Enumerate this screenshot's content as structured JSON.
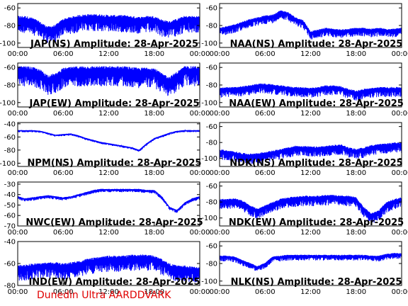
{
  "credit": "Dunedin Ultra AARDDVARK",
  "colors": {
    "trace": "#0000ff",
    "frame": "#000000",
    "credit": "#e00000"
  },
  "chart_data": [
    {
      "type": "line",
      "title": "JAP(NS) Amplitude: 28-Apr-2025",
      "xticks": [
        "00:00",
        "06:00",
        "12:00",
        "18:00",
        "00:00"
      ],
      "ylim": [
        -105,
        -55
      ],
      "yticks": [
        -100,
        -80,
        -60
      ],
      "x": [
        0,
        1,
        2,
        3,
        4,
        5,
        6,
        7,
        8,
        9,
        10,
        11,
        12,
        13,
        14,
        15,
        16,
        17,
        18,
        19,
        20,
        21,
        22,
        23,
        24
      ],
      "values": [
        -72,
        -72,
        -74,
        -79,
        -84,
        -82,
        -75,
        -73,
        -71,
        -70,
        -70,
        -70,
        -71,
        -71,
        -71,
        -72,
        -73,
        -72,
        -72,
        -76,
        -78,
        -75,
        -72,
        -72,
        -72
      ],
      "noise": 12
    },
    {
      "type": "line",
      "title": "NAA(NS) Amplitude: 28-Apr-2025",
      "xticks": [
        "00:00",
        "06:00",
        "12:00",
        "18:00",
        "00:00"
      ],
      "ylim": [
        -105,
        -55
      ],
      "yticks": [
        -100,
        -80,
        -60
      ],
      "x": [
        0,
        1,
        2,
        3,
        4,
        5,
        6,
        7,
        8,
        9,
        10,
        11,
        12,
        13,
        14,
        15,
        16,
        17,
        18,
        19,
        20,
        21,
        22,
        23,
        24
      ],
      "values": [
        -84,
        -82,
        -80,
        -77,
        -74,
        -72,
        -70,
        -69,
        -64,
        -66,
        -72,
        -75,
        -88,
        -86,
        -84,
        -85,
        -86,
        -85,
        -84,
        -84,
        -85,
        -84,
        -85,
        -85,
        -84
      ],
      "noise": 6
    },
    {
      "type": "line",
      "title": "JAP(EW) Amplitude: 28-Apr-2025",
      "xticks": [
        "00:00",
        "06:00",
        "12:00",
        "18:00",
        "00:00"
      ],
      "ylim": [
        -105,
        -55
      ],
      "yticks": [
        -100,
        -80,
        -60
      ],
      "x": [
        0,
        1,
        2,
        3,
        4,
        5,
        6,
        7,
        8,
        9,
        10,
        11,
        12,
        13,
        14,
        15,
        16,
        17,
        18,
        19,
        20,
        21,
        22,
        23,
        24
      ],
      "values": [
        -62,
        -62,
        -63,
        -66,
        -72,
        -70,
        -64,
        -63,
        -62,
        -62,
        -62,
        -62,
        -62,
        -62,
        -62,
        -63,
        -64,
        -63,
        -64,
        -70,
        -74,
        -68,
        -62,
        -62,
        -62
      ],
      "noise": 14
    },
    {
      "type": "line",
      "title": "NAA(EW) Amplitude: 28-Apr-2025",
      "xticks": [
        "00:00",
        "06:00",
        "12:00",
        "18:00",
        "00:00"
      ],
      "ylim": [
        -105,
        -55
      ],
      "yticks": [
        -100,
        -80,
        -60
      ],
      "x": [
        0,
        1,
        2,
        3,
        4,
        5,
        6,
        7,
        8,
        9,
        10,
        11,
        12,
        13,
        14,
        15,
        16,
        17,
        18,
        19,
        20,
        21,
        22,
        23,
        24
      ],
      "values": [
        -85,
        -84,
        -84,
        -83,
        -82,
        -80,
        -80,
        -81,
        -82,
        -83,
        -84,
        -84,
        -85,
        -84,
        -82,
        -82,
        -83,
        -86,
        -88,
        -86,
        -85,
        -84,
        -84,
        -84,
        -84
      ],
      "noise": 7
    },
    {
      "type": "line",
      "title": "NPM(NS) Amplitude: 28-Apr-2025",
      "xticks": [
        "00:00",
        "06:00",
        "12:00",
        "18:00",
        "00:00"
      ],
      "ylim": [
        -105,
        -38
      ],
      "yticks": [
        -100,
        -80,
        -60,
        -40
      ],
      "x": [
        0,
        1,
        2,
        3,
        4,
        5,
        6,
        7,
        8,
        9,
        10,
        11,
        12,
        13,
        14,
        15,
        16,
        17,
        18,
        19,
        20,
        21,
        22,
        23,
        24
      ],
      "values": [
        -50,
        -50,
        -50,
        -51,
        -54,
        -57,
        -56,
        -55,
        -58,
        -62,
        -65,
        -68,
        -70,
        -72,
        -74,
        -76,
        -80,
        -70,
        -62,
        -58,
        -54,
        -51,
        -50,
        -50,
        -50
      ],
      "noise": 2
    },
    {
      "type": "line",
      "title": "NDK(NS) Amplitude: 28-Apr-2025",
      "xticks": [
        "00:00",
        "06:00",
        "12:00",
        "18:00",
        "00:00"
      ],
      "ylim": [
        -110,
        -55
      ],
      "yticks": [
        -100,
        -80,
        -60
      ],
      "x": [
        0,
        1,
        2,
        3,
        4,
        5,
        6,
        7,
        8,
        9,
        10,
        11,
        12,
        13,
        14,
        15,
        16,
        17,
        18,
        19,
        20,
        21,
        22,
        23,
        24
      ],
      "values": [
        -90,
        -92,
        -93,
        -95,
        -96,
        -95,
        -94,
        -92,
        -90,
        -88,
        -86,
        -86,
        -87,
        -87,
        -86,
        -85,
        -84,
        -88,
        -90,
        -88,
        -85,
        -84,
        -83,
        -82,
        -82
      ],
      "noise": 8
    },
    {
      "type": "line",
      "title": "NWC(EW) Amplitude: 28-Apr-2025",
      "xticks": [
        "00:00",
        "06:00",
        "12:00",
        "18:00",
        "00:00"
      ],
      "ylim": [
        -70,
        -28
      ],
      "yticks": [
        -70,
        -60,
        -50,
        -40,
        -30
      ],
      "x": [
        0,
        1,
        2,
        3,
        4,
        5,
        6,
        7,
        8,
        9,
        10,
        11,
        12,
        13,
        14,
        15,
        16,
        17,
        18,
        19,
        20,
        21,
        22,
        23,
        24
      ],
      "values": [
        -42,
        -44,
        -43,
        -42,
        -41,
        -42,
        -43,
        -42,
        -40,
        -38,
        -36,
        -35,
        -35,
        -35,
        -35,
        -35,
        -35,
        -36,
        -36,
        -42,
        -52,
        -55,
        -48,
        -44,
        -42
      ],
      "noise": 2
    },
    {
      "type": "line",
      "title": "NDK(EW) Amplitude: 28-Apr-2025",
      "xticks": [
        "00:00",
        "06:00",
        "12:00",
        "18:00",
        "00:00"
      ],
      "ylim": [
        -110,
        -55
      ],
      "yticks": [
        -100,
        -80,
        -60
      ],
      "x": [
        0,
        1,
        2,
        3,
        4,
        5,
        6,
        7,
        8,
        9,
        10,
        11,
        12,
        13,
        14,
        15,
        16,
        17,
        18,
        19,
        20,
        21,
        22,
        23,
        24
      ],
      "values": [
        -78,
        -78,
        -77,
        -80,
        -86,
        -90,
        -86,
        -82,
        -78,
        -76,
        -75,
        -74,
        -74,
        -74,
        -73,
        -73,
        -74,
        -74,
        -76,
        -88,
        -96,
        -92,
        -82,
        -78,
        -76
      ],
      "noise": 8
    },
    {
      "type": "line",
      "title": "IND(EW) Amplitude: 28-Apr-2025",
      "xticks": [
        "00:00",
        "06:00",
        "12:00",
        "18:00",
        "00:00"
      ],
      "ylim": [
        -80,
        -40
      ],
      "yticks": [
        -80,
        -60,
        -40
      ],
      "x": [
        0,
        1,
        2,
        3,
        4,
        5,
        6,
        7,
        8,
        9,
        10,
        11,
        12,
        13,
        14,
        15,
        16,
        17,
        18,
        19,
        20,
        21,
        22,
        23,
        24
      ],
      "values": [
        -64,
        -63,
        -62,
        -62,
        -61,
        -61,
        -62,
        -61,
        -60,
        -58,
        -57,
        -56,
        -55,
        -55,
        -55,
        -54,
        -54,
        -54,
        -55,
        -58,
        -62,
        -64,
        -64,
        -65,
        -65
      ],
      "noise": 9
    },
    {
      "type": "line",
      "title": "NLK(NS) Amplitude: 28-Apr-2025",
      "xticks": [
        "00:00",
        "06:00",
        "12:00",
        "18:00",
        "00:00"
      ],
      "ylim": [
        -105,
        -55
      ],
      "yticks": [
        -100,
        -80,
        -60
      ],
      "x": [
        0,
        1,
        2,
        3,
        4,
        5,
        6,
        7,
        8,
        9,
        10,
        11,
        12,
        13,
        14,
        15,
        16,
        17,
        18,
        19,
        20,
        21,
        22,
        23,
        24
      ],
      "values": [
        -72,
        -72,
        -73,
        -77,
        -80,
        -84,
        -80,
        -73,
        -72,
        -71,
        -71,
        -71,
        -71,
        -71,
        -71,
        -71,
        -71,
        -71,
        -71,
        -71,
        -72,
        -72,
        -70,
        -69,
        -69
      ],
      "noise": 4
    }
  ]
}
